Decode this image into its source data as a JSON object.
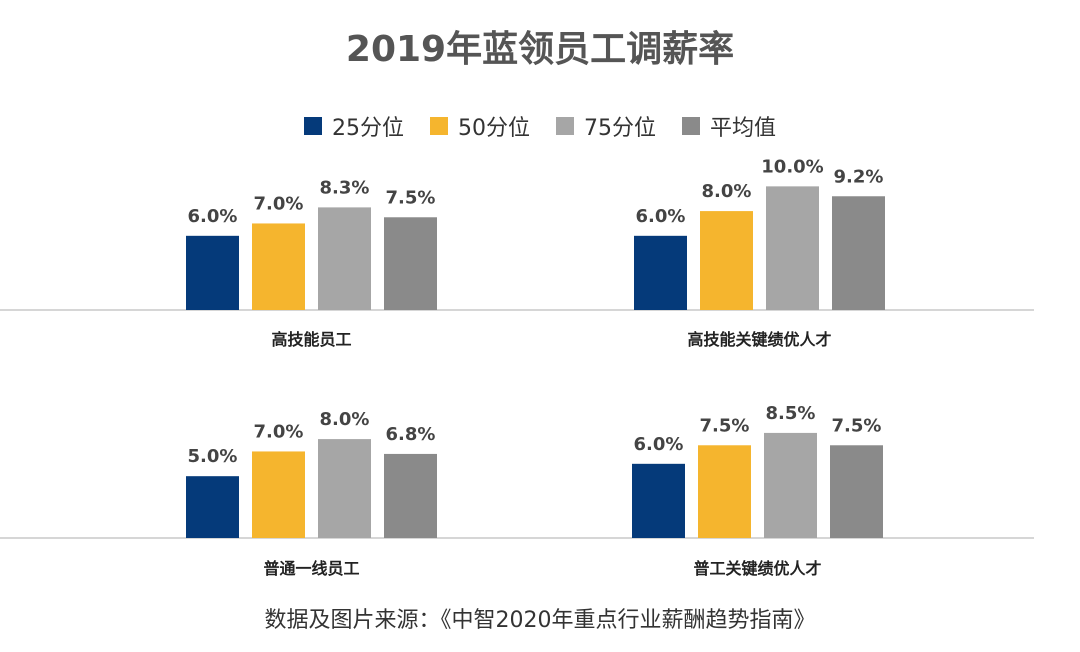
{
  "title": "2019年蓝领员工调薪率",
  "source": "数据及图片来源：《中智2020年重点行业薪酬趋势指南》",
  "legend": [
    {
      "name": "25分位",
      "color": "#053a7a"
    },
    {
      "name": "50分位",
      "color": "#f5b52e"
    },
    {
      "name": "75分位",
      "color": "#a6a6a6"
    },
    {
      "name": "平均值",
      "color": "#8a8a8a"
    }
  ],
  "chart_data": {
    "type": "bar",
    "title": "2019年蓝领员工调薪率",
    "series_names": [
      "25分位",
      "50分位",
      "75分位",
      "平均值"
    ],
    "ylim": [
      0,
      11
    ],
    "grid": false,
    "legend_position": "top",
    "groups": [
      {
        "category": "高技能员工",
        "values": [
          6.0,
          7.0,
          8.3,
          7.5
        ],
        "labels": [
          "6.0%",
          "7.0%",
          "8.3%",
          "7.5%"
        ]
      },
      {
        "category": "高技能关键绩优人才",
        "values": [
          6.0,
          8.0,
          10.0,
          9.2
        ],
        "labels": [
          "6.0%",
          "8.0%",
          "10.0%",
          "9.2%"
        ]
      },
      {
        "category": "普通一线员工",
        "values": [
          5.0,
          7.0,
          8.0,
          6.8
        ],
        "labels": [
          "5.0%",
          "7.0%",
          "8.0%",
          "6.8%"
        ]
      },
      {
        "category": "普工关键绩优人才",
        "values": [
          6.0,
          7.5,
          8.5,
          7.5
        ],
        "labels": [
          "6.0%",
          "7.5%",
          "8.5%",
          "7.5%"
        ]
      }
    ]
  }
}
